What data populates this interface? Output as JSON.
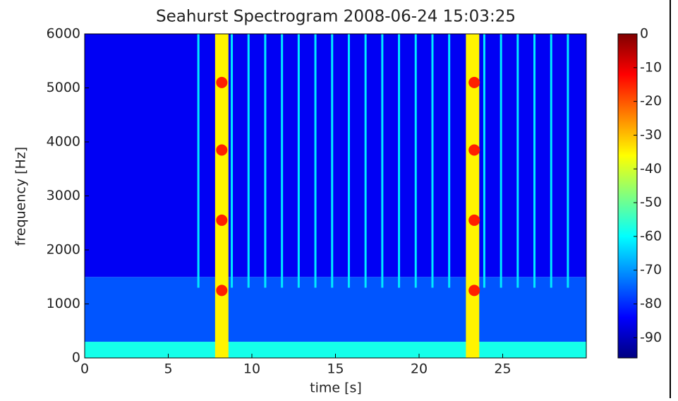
{
  "chart_data": {
    "type": "spectrogram",
    "title": "Seahurst Spectrogram 2008-06-24 15:03:25",
    "xlabel": "time [s]",
    "ylabel": "frequency [Hz]",
    "xlim": [
      0,
      30
    ],
    "ylim": [
      0,
      6000
    ],
    "xticks": [
      0,
      5,
      10,
      15,
      20,
      25
    ],
    "yticks": [
      0,
      1000,
      2000,
      3000,
      4000,
      5000,
      6000
    ],
    "clim": [
      -96,
      0
    ],
    "cticks": [
      0,
      -10,
      -20,
      -30,
      -40,
      -50,
      -60,
      -70,
      -80,
      -90
    ],
    "colormap": "jet",
    "floor": [
      {
        "f": [
          0,
          300
        ],
        "level": -58
      },
      {
        "f": [
          300,
          1500
        ],
        "level": -76
      },
      {
        "f": [
          1500,
          6000
        ],
        "level": -85
      }
    ],
    "pulses": [
      {
        "t": [
          7.8,
          8.6
        ],
        "level": -35
      },
      {
        "t": [
          22.8,
          23.6
        ],
        "level": -35
      }
    ],
    "tones": [
      {
        "t": 8.2,
        "f": 1250,
        "level": -15
      },
      {
        "t": 8.2,
        "f": 2550,
        "level": -15
      },
      {
        "t": 8.2,
        "f": 3850,
        "level": -15
      },
      {
        "t": 8.2,
        "f": 5100,
        "level": -15
      },
      {
        "t": 23.3,
        "f": 1250,
        "level": -15
      },
      {
        "t": 23.3,
        "f": 2550,
        "level": -15
      },
      {
        "t": 23.3,
        "f": 3850,
        "level": -15
      },
      {
        "t": 23.3,
        "f": 5100,
        "level": -15
      }
    ],
    "clicks": {
      "t": [
        6.8,
        8.8,
        9.8,
        10.8,
        11.8,
        12.8,
        13.8,
        14.8,
        15.8,
        16.8,
        17.8,
        18.8,
        19.8,
        20.8,
        21.8,
        23.9,
        24.9,
        25.9,
        26.9,
        27.9,
        28.9
      ],
      "f": [
        1300,
        6000
      ],
      "level": -62
    }
  }
}
